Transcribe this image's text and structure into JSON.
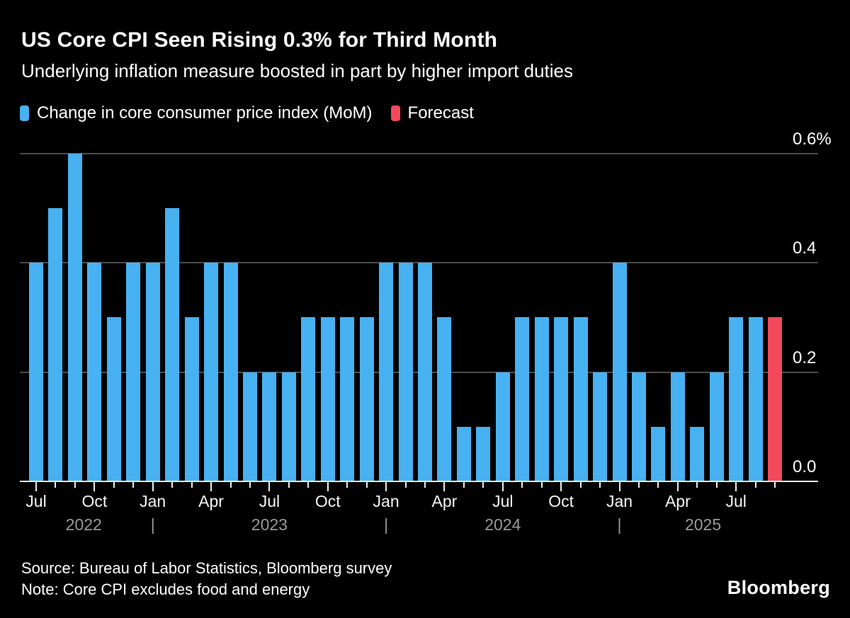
{
  "header": {
    "title": "US Core CPI Seen Rising 0.3% for Third Month",
    "subtitle": "Underlying inflation measure boosted in part by higher import duties"
  },
  "legend": [
    {
      "label": "Change in core consumer price index (MoM)",
      "color": "#47B1F2",
      "icon": "blue-square-swatch"
    },
    {
      "label": "Forecast",
      "color": "#F4495B",
      "icon": "red-square-swatch"
    }
  ],
  "chart_data": {
    "type": "bar",
    "unit": "%",
    "title": "US Core CPI Seen Rising 0.3% for Third Month",
    "ylim": [
      0,
      0.6
    ],
    "grid": true,
    "legend_position": "top-left",
    "series_colors": {
      "actual": "#47B1F2",
      "forecast": "#F4495B"
    },
    "y_ticks": [
      {
        "value": 0.6,
        "label": "0.6%"
      },
      {
        "value": 0.4,
        "label": "0.4"
      },
      {
        "value": 0.2,
        "label": "0.2"
      },
      {
        "value": 0.0,
        "label": "0.0"
      }
    ],
    "points": [
      {
        "month": "Jul 2022",
        "value": 0.4,
        "forecast": false,
        "tick_label": "Jul"
      },
      {
        "month": "Aug 2022",
        "value": 0.5,
        "forecast": false
      },
      {
        "month": "Sep 2022",
        "value": 0.6,
        "forecast": false
      },
      {
        "month": "Oct 2022",
        "value": 0.4,
        "forecast": false,
        "tick_label": "Oct"
      },
      {
        "month": "Nov 2022",
        "value": 0.3,
        "forecast": false
      },
      {
        "month": "Dec 2022",
        "value": 0.4,
        "forecast": false
      },
      {
        "month": "Jan 2023",
        "value": 0.4,
        "forecast": false,
        "tick_label": "Jan"
      },
      {
        "month": "Feb 2023",
        "value": 0.5,
        "forecast": false
      },
      {
        "month": "Mar 2023",
        "value": 0.3,
        "forecast": false
      },
      {
        "month": "Apr 2023",
        "value": 0.4,
        "forecast": false,
        "tick_label": "Apr"
      },
      {
        "month": "May 2023",
        "value": 0.4,
        "forecast": false
      },
      {
        "month": "Jun 2023",
        "value": 0.2,
        "forecast": false
      },
      {
        "month": "Jul 2023",
        "value": 0.2,
        "forecast": false,
        "tick_label": "Jul"
      },
      {
        "month": "Aug 2023",
        "value": 0.2,
        "forecast": false
      },
      {
        "month": "Sep 2023",
        "value": 0.3,
        "forecast": false
      },
      {
        "month": "Oct 2023",
        "value": 0.3,
        "forecast": false,
        "tick_label": "Oct"
      },
      {
        "month": "Nov 2023",
        "value": 0.3,
        "forecast": false
      },
      {
        "month": "Dec 2023",
        "value": 0.3,
        "forecast": false
      },
      {
        "month": "Jan 2024",
        "value": 0.4,
        "forecast": false,
        "tick_label": "Jan"
      },
      {
        "month": "Feb 2024",
        "value": 0.4,
        "forecast": false
      },
      {
        "month": "Mar 2024",
        "value": 0.4,
        "forecast": false
      },
      {
        "month": "Apr 2024",
        "value": 0.3,
        "forecast": false,
        "tick_label": "Apr"
      },
      {
        "month": "May 2024",
        "value": 0.1,
        "forecast": false
      },
      {
        "month": "Jun 2024",
        "value": 0.1,
        "forecast": false
      },
      {
        "month": "Jul 2024",
        "value": 0.2,
        "forecast": false,
        "tick_label": "Jul"
      },
      {
        "month": "Aug 2024",
        "value": 0.3,
        "forecast": false
      },
      {
        "month": "Sep 2024",
        "value": 0.3,
        "forecast": false
      },
      {
        "month": "Oct 2024",
        "value": 0.3,
        "forecast": false,
        "tick_label": "Oct"
      },
      {
        "month": "Nov 2024",
        "value": 0.3,
        "forecast": false
      },
      {
        "month": "Dec 2024",
        "value": 0.2,
        "forecast": false
      },
      {
        "month": "Jan 2025",
        "value": 0.4,
        "forecast": false,
        "tick_label": "Jan"
      },
      {
        "month": "Feb 2025",
        "value": 0.2,
        "forecast": false
      },
      {
        "month": "Mar 2025",
        "value": 0.1,
        "forecast": false
      },
      {
        "month": "Apr 2025",
        "value": 0.2,
        "forecast": false,
        "tick_label": "Apr"
      },
      {
        "month": "May 2025",
        "value": 0.1,
        "forecast": false
      },
      {
        "month": "Jun 2025",
        "value": 0.2,
        "forecast": false
      },
      {
        "month": "Jul 2025",
        "value": 0.3,
        "forecast": false,
        "tick_label": "Jul"
      },
      {
        "month": "Aug 2025",
        "value": 0.3,
        "forecast": false
      },
      {
        "month": "Sep 2025",
        "value": 0.3,
        "forecast": true
      }
    ],
    "year_row": [
      {
        "label": "2022",
        "index": 2.45
      },
      {
        "label": "|",
        "index": 6
      },
      {
        "label": "2023",
        "index": 12
      },
      {
        "label": "|",
        "index": 18
      },
      {
        "label": "2024",
        "index": 24
      },
      {
        "label": "|",
        "index": 30
      },
      {
        "label": "2025",
        "index": 34.3
      }
    ]
  },
  "footer": {
    "source": "Source: Bureau of Labor Statistics, Bloomberg survey",
    "note": "Note: Core CPI excludes food and energy",
    "brand": "Bloomberg"
  }
}
